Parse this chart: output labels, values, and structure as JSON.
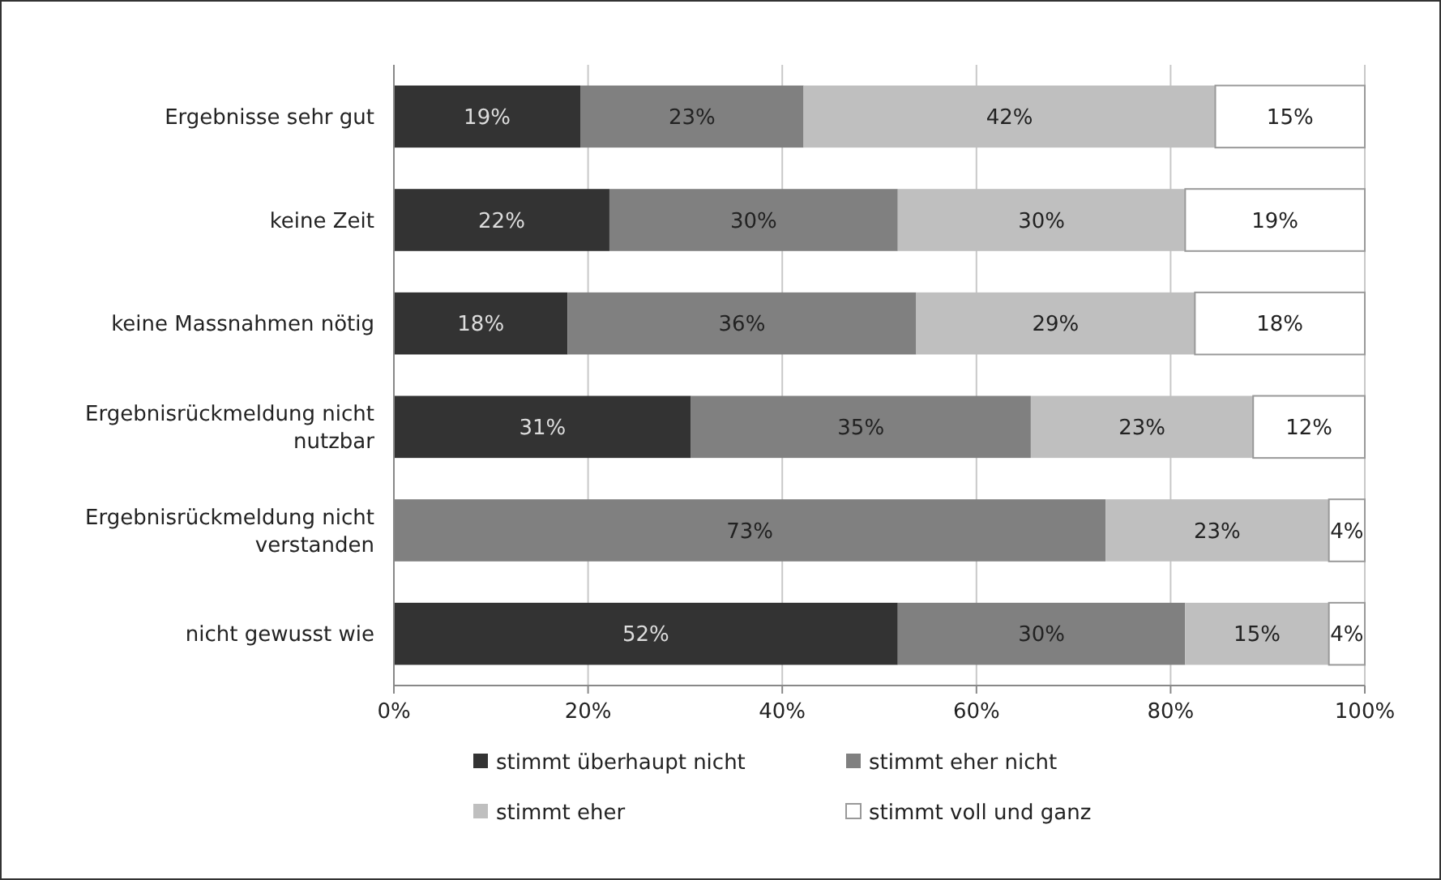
{
  "chart_data": {
    "type": "bar",
    "orientation": "horizontal",
    "stacked": true,
    "categories": [
      "Ergebnisse sehr gut",
      "keine Zeit",
      "keine Massnahmen nötig",
      "Ergebnisrückmeldung nicht nutzbar",
      "Ergebnisrückmeldung nicht verstanden",
      "nicht gewusst wie"
    ],
    "series": [
      {
        "name": "stimmt überhaupt nicht",
        "color": "#333333",
        "values": [
          19.2,
          22.2,
          17.9,
          30.6,
          0,
          51.9
        ],
        "value_labels": [
          "19%",
          "22%",
          "18%",
          "31%",
          null,
          "52%"
        ]
      },
      {
        "name": "stimmt eher nicht",
        "color": "#808080",
        "values": [
          23,
          29.7,
          35.9,
          35,
          73.3,
          29.6
        ],
        "value_labels": [
          "23%",
          "30%",
          "36%",
          "35%",
          "73%",
          "30%"
        ]
      },
      {
        "name": "stimmt eher",
        "color": "#bfbfbf",
        "values": [
          42.4,
          29.6,
          28.7,
          22.9,
          23,
          14.8
        ],
        "value_labels": [
          "42%",
          "30%",
          "29%",
          "23%",
          "23%",
          "15%"
        ]
      },
      {
        "name": "stimmt voll und ganz",
        "color": "#ffffff",
        "values": [
          15.4,
          18.5,
          17.5,
          11.5,
          3.7,
          3.7
        ],
        "value_labels": [
          "15%",
          "19%",
          "18%",
          "12%",
          "4%",
          "4%"
        ]
      }
    ],
    "xlim": [
      0,
      100
    ],
    "xticks": [
      {
        "value": 0,
        "label": "0%"
      },
      {
        "value": 20,
        "label": "20%"
      },
      {
        "value": 40,
        "label": "40%"
      },
      {
        "value": 60,
        "label": "60%"
      },
      {
        "value": 80,
        "label": "80%"
      },
      {
        "value": 100,
        "label": "100%"
      }
    ],
    "grid": "x",
    "legend": "bottom"
  }
}
